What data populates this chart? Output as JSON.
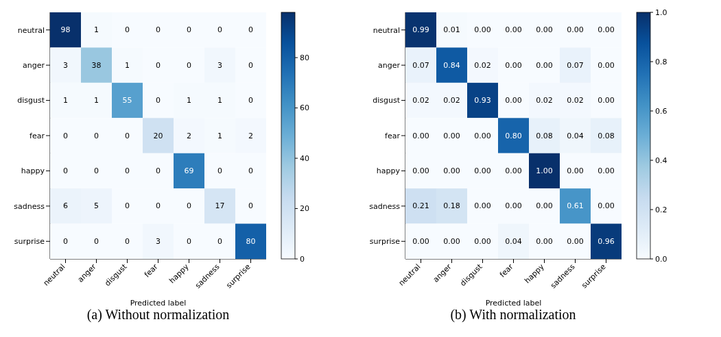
{
  "chart_data": [
    {
      "type": "heatmap",
      "xlabel": "Predicted label",
      "annotations": [
        "(a) Without normalization"
      ],
      "data_labels": true,
      "categories": [
        "neutral",
        "anger",
        "disgust",
        "fear",
        "happy",
        "sadness",
        "surprise"
      ],
      "y_categories": [
        "neutral",
        "anger",
        "disgust",
        "fear",
        "happy",
        "sadness",
        "surprise"
      ],
      "cells": [
        [
          98,
          1,
          0,
          0,
          0,
          0,
          0
        ],
        [
          3,
          38,
          1,
          0,
          0,
          3,
          0
        ],
        [
          1,
          1,
          55,
          0,
          1,
          1,
          0
        ],
        [
          0,
          0,
          0,
          20,
          2,
          1,
          2
        ],
        [
          0,
          0,
          0,
          0,
          69,
          0,
          0
        ],
        [
          6,
          5,
          0,
          0,
          0,
          17,
          0
        ],
        [
          0,
          0,
          0,
          3,
          0,
          0,
          80
        ]
      ],
      "clim": [
        0,
        98
      ],
      "cticks": [
        0,
        20,
        40,
        60,
        80
      ]
    },
    {
      "type": "heatmap",
      "xlabel": "Predicted label",
      "annotations": [
        "(b) With normalization"
      ],
      "categories": [
        "neutral",
        "anger",
        "disgust",
        "fear",
        "happy",
        "sadness",
        "surprise"
      ],
      "y_categories": [
        "neutral",
        "anger",
        "disgust",
        "fear",
        "happy",
        "sadness",
        "surprise"
      ],
      "cells": [
        [
          0.99,
          0.01,
          0,
          0,
          0,
          0,
          0
        ],
        [
          0.07,
          0.84,
          0.02,
          0,
          0,
          0.07,
          0
        ],
        [
          0.02,
          0.02,
          0.93,
          0,
          0.02,
          0.02,
          0
        ],
        [
          0,
          0,
          0,
          0.8,
          0.08,
          0.04,
          0.08
        ],
        [
          0,
          0,
          0,
          0,
          1,
          0,
          0
        ],
        [
          0.21,
          0.18,
          0,
          0,
          0,
          0.61,
          0
        ],
        [
          0,
          0,
          0,
          0.04,
          0,
          0,
          0.96
        ]
      ],
      "cell_labels": [
        [
          "0.99",
          "0.01",
          "0.00",
          "0.00",
          "0.00",
          "0.00",
          "0.00"
        ],
        [
          "0.07",
          "0.84",
          "0.02",
          "0.00",
          "0.00",
          "0.07",
          "0.00"
        ],
        [
          "0.02",
          "0.02",
          "0.93",
          "0.00",
          "0.02",
          "0.02",
          "0.00"
        ],
        [
          "0.00",
          "0.00",
          "0.00",
          "0.80",
          "0.08",
          "0.04",
          "0.08"
        ],
        [
          "0.00",
          "0.00",
          "0.00",
          "0.00",
          "1.00",
          "0.00",
          "0.00"
        ],
        [
          "0.21",
          "0.18",
          "0.00",
          "0.00",
          "0.00",
          "0.61",
          "0.00"
        ],
        [
          "0.00",
          "0.00",
          "0.00",
          "0.04",
          "0.00",
          "0.00",
          "0.96"
        ]
      ],
      "clim": [
        0,
        1
      ],
      "cticks": [
        {
          "value": 0,
          "label": "0.0"
        },
        {
          "value": 0.2,
          "label": "0.2"
        },
        {
          "value": 0.4,
          "label": "0.4"
        },
        {
          "value": 0.6,
          "label": "0.6"
        },
        {
          "value": 0.8,
          "label": "0.8"
        },
        {
          "value": 1,
          "label": "1.0"
        }
      ]
    }
  ]
}
